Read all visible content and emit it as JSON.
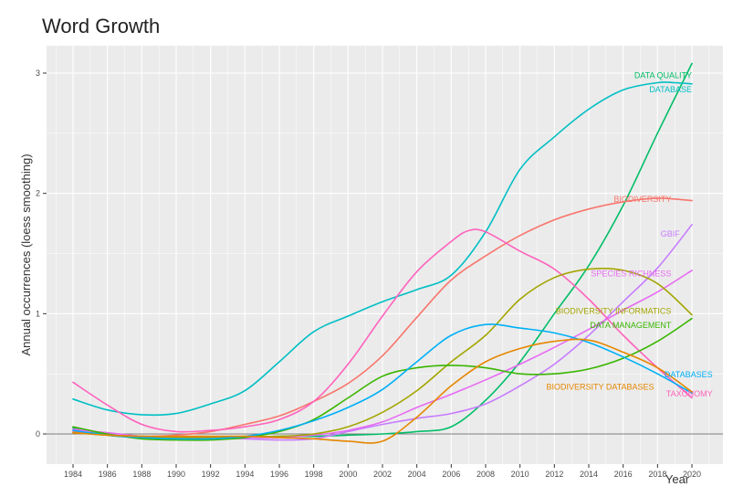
{
  "chart_data": {
    "type": "line",
    "title": "Word Growth",
    "xlabel": "Year",
    "ylabel": "Annual occurrences (loess smoothing)",
    "xlim": [
      1984,
      2020
    ],
    "ylim": [
      -0.2,
      3.1
    ],
    "x_ticks": [
      "1984",
      "1986",
      "1988",
      "1990",
      "1992",
      "1994",
      "1996",
      "1998",
      "2000",
      "2002",
      "2004",
      "2006",
      "2008",
      "2010",
      "2012",
      "2014",
      "2016",
      "2018",
      "2020"
    ],
    "y_ticks": [
      "0",
      "1",
      "2",
      "3"
    ],
    "grid": true,
    "legend": "inline labels at line ends",
    "series": [
      {
        "name": "DATA QUALITY",
        "color": "#00BE67",
        "x": [
          1984,
          1986,
          1988,
          1990,
          1992,
          1994,
          1996,
          1998,
          2000,
          2002,
          2004,
          2006,
          2008,
          2010,
          2012,
          2014,
          2016,
          2018,
          2020
        ],
        "y": [
          0.05,
          -0.01,
          -0.03,
          -0.04,
          -0.04,
          -0.03,
          -0.02,
          -0.02,
          -0.01,
          0,
          0.02,
          0.06,
          0.28,
          0.6,
          1.0,
          1.4,
          1.9,
          2.5,
          3.08
        ]
      },
      {
        "name": "DATABASE",
        "color": "#00BFC4",
        "x": [
          1984,
          1986,
          1988,
          1990,
          1992,
          1994,
          1996,
          1998,
          2000,
          2002,
          2004,
          2006,
          2008,
          2010,
          2012,
          2014,
          2016,
          2018,
          2019,
          2020
        ],
        "y": [
          0.29,
          0.2,
          0.16,
          0.17,
          0.25,
          0.36,
          0.6,
          0.85,
          0.98,
          1.1,
          1.2,
          1.32,
          1.68,
          2.2,
          2.47,
          2.7,
          2.86,
          2.92,
          2.92,
          2.91
        ]
      },
      {
        "name": "BIODIVERSITY",
        "color": "#F8766D",
        "x": [
          1984,
          1986,
          1988,
          1990,
          1992,
          1994,
          1996,
          1998,
          2000,
          2002,
          2004,
          2006,
          2008,
          2010,
          2012,
          2014,
          2016,
          2018,
          2020
        ],
        "y": [
          0.02,
          -0.01,
          -0.02,
          -0.01,
          0.02,
          0.08,
          0.15,
          0.27,
          0.42,
          0.65,
          0.97,
          1.28,
          1.48,
          1.65,
          1.78,
          1.87,
          1.93,
          1.96,
          1.94
        ]
      },
      {
        "name": "GBIF",
        "color": "#C77CFF",
        "x": [
          1984,
          1986,
          1988,
          1990,
          1992,
          1994,
          1996,
          1998,
          2000,
          2002,
          2004,
          2006,
          2008,
          2010,
          2012,
          2014,
          2016,
          2018,
          2020
        ],
        "y": [
          0.03,
          0.01,
          -0.02,
          -0.03,
          -0.03,
          -0.04,
          -0.05,
          -0.04,
          0.02,
          0.08,
          0.13,
          0.17,
          0.25,
          0.4,
          0.58,
          0.82,
          1.1,
          1.38,
          1.74
        ]
      },
      {
        "name": "SPECIES RICHNESS",
        "color": "#E76BF3",
        "x": [
          1984,
          1986,
          1988,
          1990,
          1992,
          1994,
          1996,
          1998,
          2000,
          2002,
          2004,
          2006,
          2008,
          2010,
          2012,
          2014,
          2016,
          2018,
          2020
        ],
        "y": [
          0.04,
          0.01,
          -0.02,
          -0.03,
          -0.03,
          -0.03,
          -0.03,
          -0.01,
          0.03,
          0.1,
          0.22,
          0.33,
          0.45,
          0.58,
          0.72,
          0.87,
          1.03,
          1.18,
          1.36
        ]
      },
      {
        "name": "TAXONOMY",
        "color": "#FF62BC",
        "x": [
          1984,
          1986,
          1988,
          1990,
          1992,
          1994,
          1996,
          1998,
          2000,
          2002,
          2004,
          2006,
          2007,
          2008,
          2010,
          2012,
          2014,
          2016,
          2018,
          2020
        ],
        "y": [
          0.43,
          0.24,
          0.08,
          0.02,
          0.03,
          0.06,
          0.12,
          0.27,
          0.58,
          0.98,
          1.35,
          1.6,
          1.69,
          1.68,
          1.52,
          1.37,
          1.12,
          0.82,
          0.55,
          0.3
        ]
      },
      {
        "name": "BIODIVERSITY INFORMATICS",
        "color": "#A3A500",
        "x": [
          1984,
          1986,
          1988,
          1990,
          1992,
          1994,
          1996,
          1998,
          2000,
          2002,
          2004,
          2006,
          2008,
          2010,
          2012,
          2014,
          2016,
          2018,
          2020
        ],
        "y": [
          0.01,
          -0.01,
          -0.02,
          -0.03,
          -0.03,
          -0.02,
          -0.02,
          0,
          0.06,
          0.18,
          0.36,
          0.6,
          0.82,
          1.12,
          1.3,
          1.37,
          1.36,
          1.25,
          0.99
        ]
      },
      {
        "name": "DATA MANAGEMENT",
        "color": "#39B600",
        "x": [
          1984,
          1986,
          1988,
          1990,
          1992,
          1994,
          1996,
          1998,
          2000,
          2002,
          2004,
          2006,
          2008,
          2010,
          2012,
          2014,
          2016,
          2018,
          2020
        ],
        "y": [
          0.06,
          0,
          -0.04,
          -0.05,
          -0.05,
          -0.03,
          0.02,
          0.12,
          0.3,
          0.48,
          0.55,
          0.57,
          0.55,
          0.5,
          0.5,
          0.54,
          0.63,
          0.77,
          0.96
        ]
      },
      {
        "name": "DATABASES",
        "color": "#00B0F6",
        "x": [
          1984,
          1986,
          1988,
          1990,
          1992,
          1994,
          1996,
          1998,
          2000,
          2002,
          2004,
          2006,
          2008,
          2010,
          2012,
          2014,
          2016,
          2018,
          2020
        ],
        "y": [
          0.03,
          -0.01,
          -0.03,
          -0.04,
          -0.04,
          -0.02,
          0.03,
          0.11,
          0.22,
          0.37,
          0.6,
          0.82,
          0.91,
          0.88,
          0.84,
          0.76,
          0.64,
          0.5,
          0.34
        ]
      },
      {
        "name": "BIODIVERSITY DATABASES",
        "color": "#E58700",
        "x": [
          1984,
          1986,
          1988,
          1990,
          1992,
          1994,
          1996,
          1998,
          2000,
          2002,
          2004,
          2006,
          2008,
          2010,
          2012,
          2014,
          2016,
          2018,
          2020
        ],
        "y": [
          0.01,
          -0.01,
          -0.02,
          -0.02,
          -0.02,
          -0.02,
          -0.03,
          -0.04,
          -0.06,
          -0.06,
          0.14,
          0.4,
          0.6,
          0.71,
          0.77,
          0.78,
          0.68,
          0.55,
          0.35
        ]
      }
    ],
    "inline_labels": [
      {
        "text": "DATA QUALITY",
        "series": "DATA QUALITY",
        "x": 2020,
        "y": 2.96
      },
      {
        "text": "DATABASE",
        "series": "DATABASE",
        "x": 2020,
        "y": 2.84
      },
      {
        "text": "BIODIVERSITY",
        "series": "BIODIVERSITY",
        "x": 2018.8,
        "y": 1.93
      },
      {
        "text": "GBIF",
        "series": "GBIF",
        "x": 2019.3,
        "y": 1.64
      },
      {
        "text": "SPECIES RICHNESS",
        "series": "SPECIES RICHNESS",
        "x": 2018.8,
        "y": 1.31
      },
      {
        "text": "BIODIVERSITY INFORMATICS",
        "series": "BIODIVERSITY INFORMATICS",
        "x": 2018.8,
        "y": 1.0
      },
      {
        "text": "DATA MANAGEMENT",
        "series": "DATA MANAGEMENT",
        "x": 2018.8,
        "y": 0.88
      },
      {
        "text": "DATABASES",
        "series": "DATABASES",
        "x": 2021.2,
        "y": 0.47
      },
      {
        "text": "BIODIVERSITY DATABASES",
        "series": "BIODIVERSITY DATABASES",
        "x": 2017.8,
        "y": 0.37
      },
      {
        "text": "TAXONOMY",
        "series": "TAXONOMY",
        "x": 2021.2,
        "y": 0.31
      }
    ]
  }
}
